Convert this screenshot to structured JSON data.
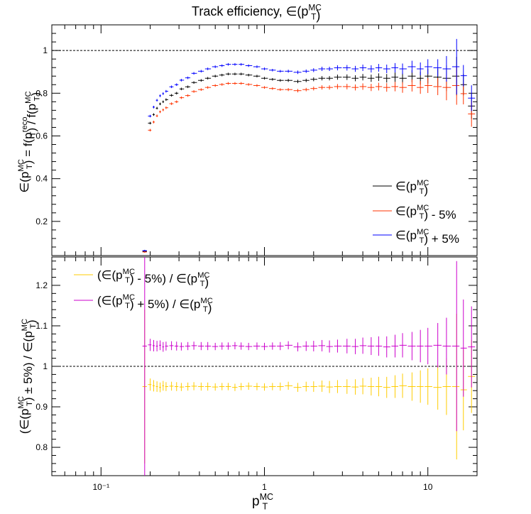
{
  "title": {
    "main": "Track efficiency, ∈(p",
    "sup": "MC",
    "sub": "T",
    "close": ")"
  },
  "chart_data": [
    {
      "type": "scatter",
      "title": "Track efficiency, ∈(p_T^MC)",
      "xlabel": "p_T^MC",
      "ylabel": "∈(p_T^MC) = f(p_T^reco) / f(p_T^MC)",
      "x_scale": "log",
      "xlim": [
        0.05,
        20
      ],
      "ylim": [
        0.04,
        1.12
      ],
      "reference_line": 1.0,
      "yticks": [
        0.2,
        0.4,
        0.6,
        0.8,
        1
      ],
      "ytick_labels": [
        "0.2",
        "0.4",
        "0.6",
        "0.8",
        "1"
      ],
      "legend_position": "bottom-right",
      "x": [
        0.185,
        0.2,
        0.21,
        0.22,
        0.23,
        0.24,
        0.25,
        0.27,
        0.29,
        0.31,
        0.34,
        0.37,
        0.41,
        0.45,
        0.5,
        0.55,
        0.6,
        0.66,
        0.72,
        0.8,
        0.9,
        1.0,
        1.12,
        1.25,
        1.4,
        1.6,
        1.8,
        2.0,
        2.25,
        2.5,
        2.8,
        3.2,
        3.6,
        4.0,
        4.5,
        5.0,
        5.6,
        6.3,
        7.0,
        8.0,
        9.0,
        10.0,
        11.5,
        13.0,
        15.0,
        16.5,
        18.5
      ],
      "series": [
        {
          "name": "∈(p_T^MC)",
          "color": "#000000",
          "values": [
            0.06,
            0.66,
            0.7,
            0.73,
            0.75,
            0.76,
            0.77,
            0.79,
            0.8,
            0.82,
            0.83,
            0.85,
            0.86,
            0.87,
            0.88,
            0.885,
            0.89,
            0.89,
            0.89,
            0.885,
            0.88,
            0.87,
            0.865,
            0.86,
            0.86,
            0.855,
            0.86,
            0.865,
            0.87,
            0.87,
            0.875,
            0.875,
            0.87,
            0.875,
            0.87,
            0.875,
            0.87,
            0.875,
            0.87,
            0.88,
            0.87,
            0.88,
            0.875,
            0.87,
            0.88,
            0.84,
            0.74
          ],
          "errors": [
            0.004,
            0.006,
            0.006,
            0.006,
            0.006,
            0.006,
            0.006,
            0.006,
            0.006,
            0.006,
            0.006,
            0.006,
            0.006,
            0.006,
            0.006,
            0.006,
            0.006,
            0.006,
            0.006,
            0.006,
            0.006,
            0.006,
            0.006,
            0.006,
            0.007,
            0.008,
            0.008,
            0.009,
            0.01,
            0.01,
            0.012,
            0.013,
            0.014,
            0.015,
            0.017,
            0.018,
            0.02,
            0.022,
            0.025,
            0.028,
            0.03,
            0.035,
            0.04,
            0.06,
            0.09,
            0.05,
            0.06
          ]
        },
        {
          "name": "∈(p_T^MC) - 5%",
          "color": "#ff3300",
          "values": [
            0.057,
            0.627,
            0.665,
            0.694,
            0.713,
            0.722,
            0.732,
            0.751,
            0.76,
            0.779,
            0.789,
            0.808,
            0.817,
            0.827,
            0.836,
            0.841,
            0.846,
            0.846,
            0.846,
            0.841,
            0.836,
            0.827,
            0.822,
            0.817,
            0.817,
            0.812,
            0.817,
            0.822,
            0.827,
            0.827,
            0.831,
            0.831,
            0.827,
            0.831,
            0.827,
            0.831,
            0.827,
            0.831,
            0.827,
            0.836,
            0.827,
            0.836,
            0.831,
            0.827,
            0.836,
            0.798,
            0.703
          ],
          "errors": [
            0.004,
            0.006,
            0.006,
            0.006,
            0.006,
            0.006,
            0.006,
            0.006,
            0.006,
            0.006,
            0.006,
            0.006,
            0.006,
            0.006,
            0.006,
            0.006,
            0.006,
            0.006,
            0.006,
            0.006,
            0.006,
            0.006,
            0.006,
            0.006,
            0.007,
            0.008,
            0.008,
            0.009,
            0.01,
            0.01,
            0.012,
            0.013,
            0.014,
            0.015,
            0.017,
            0.018,
            0.02,
            0.022,
            0.025,
            0.028,
            0.03,
            0.035,
            0.04,
            0.06,
            0.09,
            0.05,
            0.06
          ]
        },
        {
          "name": "∈(p_T^MC) + 5%",
          "color": "#0000ff",
          "values": [
            0.063,
            0.693,
            0.735,
            0.767,
            0.788,
            0.798,
            0.809,
            0.83,
            0.84,
            0.861,
            0.872,
            0.893,
            0.903,
            0.914,
            0.924,
            0.929,
            0.935,
            0.935,
            0.935,
            0.929,
            0.924,
            0.914,
            0.908,
            0.903,
            0.903,
            0.898,
            0.903,
            0.908,
            0.914,
            0.914,
            0.919,
            0.919,
            0.914,
            0.919,
            0.914,
            0.919,
            0.914,
            0.919,
            0.914,
            0.924,
            0.914,
            0.924,
            0.919,
            0.914,
            0.924,
            0.882,
            0.777
          ],
          "errors": [
            0.004,
            0.006,
            0.006,
            0.006,
            0.006,
            0.006,
            0.006,
            0.006,
            0.006,
            0.006,
            0.006,
            0.006,
            0.006,
            0.006,
            0.006,
            0.006,
            0.006,
            0.006,
            0.006,
            0.006,
            0.006,
            0.006,
            0.006,
            0.006,
            0.007,
            0.008,
            0.008,
            0.009,
            0.01,
            0.01,
            0.012,
            0.013,
            0.014,
            0.015,
            0.017,
            0.018,
            0.02,
            0.022,
            0.025,
            0.028,
            0.03,
            0.035,
            0.04,
            0.06,
            0.13,
            0.05,
            0.06
          ]
        }
      ]
    },
    {
      "type": "scatter",
      "xlabel": "p_T^MC",
      "ylabel": "(∈(p_T^MC) ± 5%) / ∈(p_T^MC)",
      "x_scale": "log",
      "xlim": [
        0.05,
        20
      ],
      "xticks": [
        0.1,
        1,
        10
      ],
      "xtick_labels": [
        "10⁻¹",
        "1",
        "10"
      ],
      "ylim": [
        0.73,
        1.27
      ],
      "reference_line": 1.0,
      "yticks": [
        0.8,
        0.9,
        1,
        1.1,
        1.2
      ],
      "ytick_labels": [
        "0.8",
        "0.9",
        "1",
        "1.1",
        "1.2"
      ],
      "legend_position": "top-left",
      "x": [
        0.185,
        0.2,
        0.21,
        0.22,
        0.23,
        0.24,
        0.25,
        0.27,
        0.29,
        0.31,
        0.34,
        0.37,
        0.41,
        0.45,
        0.5,
        0.55,
        0.6,
        0.66,
        0.72,
        0.8,
        0.9,
        1.0,
        1.12,
        1.25,
        1.4,
        1.6,
        1.8,
        2.0,
        2.25,
        2.5,
        2.8,
        3.2,
        3.6,
        4.0,
        4.5,
        5.0,
        5.6,
        6.3,
        7.0,
        8.0,
        9.0,
        10.0,
        11.5,
        13.0,
        15.0,
        16.5,
        18.5
      ],
      "series": [
        {
          "name": "(∈(p_T^MC) - 5%) / ∈(p_T^MC)",
          "color": "#ffcc00",
          "values": [
            0.95,
            0.955,
            0.952,
            0.95,
            0.948,
            0.952,
            0.95,
            0.951,
            0.95,
            0.949,
            0.95,
            0.951,
            0.95,
            0.95,
            0.949,
            0.95,
            0.95,
            0.948,
            0.95,
            0.951,
            0.95,
            0.949,
            0.95,
            0.95,
            0.952,
            0.948,
            0.95,
            0.95,
            0.951,
            0.949,
            0.95,
            0.95,
            0.949,
            0.951,
            0.95,
            0.95,
            0.948,
            0.95,
            0.952,
            0.95,
            0.95,
            0.95,
            0.948,
            0.95,
            0.95,
            0.942,
            0.975
          ],
          "errors": [
            0.19,
            0.015,
            0.014,
            0.013,
            0.012,
            0.012,
            0.011,
            0.011,
            0.011,
            0.01,
            0.01,
            0.01,
            0.01,
            0.01,
            0.009,
            0.009,
            0.009,
            0.009,
            0.009,
            0.009,
            0.009,
            0.009,
            0.009,
            0.01,
            0.01,
            0.011,
            0.012,
            0.013,
            0.014,
            0.015,
            0.016,
            0.018,
            0.019,
            0.02,
            0.022,
            0.024,
            0.026,
            0.028,
            0.03,
            0.035,
            0.04,
            0.045,
            0.055,
            0.07,
            0.18,
            0.1,
            0.09
          ]
        },
        {
          "name": "(∈(p_T^MC) + 5%) / ∈(p_T^MC)",
          "color": "#cc00cc",
          "values": [
            1.05,
            1.053,
            1.051,
            1.05,
            1.052,
            1.048,
            1.05,
            1.051,
            1.05,
            1.049,
            1.05,
            1.051,
            1.05,
            1.05,
            1.049,
            1.05,
            1.05,
            1.051,
            1.05,
            1.049,
            1.05,
            1.049,
            1.05,
            1.05,
            1.052,
            1.048,
            1.05,
            1.05,
            1.051,
            1.049,
            1.05,
            1.05,
            1.049,
            1.051,
            1.05,
            1.05,
            1.048,
            1.05,
            1.052,
            1.05,
            1.05,
            1.05,
            1.052,
            1.05,
            1.05,
            1.045,
            1.048
          ],
          "errors": [
            0.33,
            0.015,
            0.014,
            0.013,
            0.012,
            0.012,
            0.011,
            0.011,
            0.011,
            0.01,
            0.01,
            0.01,
            0.01,
            0.01,
            0.009,
            0.009,
            0.009,
            0.009,
            0.009,
            0.009,
            0.009,
            0.009,
            0.009,
            0.01,
            0.01,
            0.011,
            0.012,
            0.013,
            0.014,
            0.015,
            0.016,
            0.018,
            0.019,
            0.02,
            0.022,
            0.024,
            0.026,
            0.028,
            0.03,
            0.035,
            0.04,
            0.045,
            0.055,
            0.07,
            0.21,
            0.12,
            0.1
          ]
        }
      ]
    }
  ],
  "labels": {
    "top_y": {
      "a": "∈(p",
      "a_sup": "MC",
      "a_sub": "T",
      "b": ") = f(p",
      "b_sup": "reco",
      "b_sub": "T",
      "c": ") / f(p",
      "c_sup": "MC",
      "c_sub": "T",
      "d": ")"
    },
    "bottom_y": {
      "a": "(∈(p",
      "a_sup": "MC",
      "a_sub": "T",
      "b": ") ± 5%) / ∈(p",
      "b_sup": "MC",
      "b_sub": "T",
      "c": ")"
    },
    "x": {
      "a": "p",
      "a_sup": "MC",
      "a_sub": "T"
    }
  },
  "legend_top": [
    {
      "a": "∈(p",
      "sup": "MC",
      "sub": "T",
      "b": ")"
    },
    {
      "a": "∈(p",
      "sup": "MC",
      "sub": "T",
      "b": ") - 5%"
    },
    {
      "a": "∈(p",
      "sup": "MC",
      "sub": "T",
      "b": ") + 5%"
    }
  ],
  "legend_bottom": [
    {
      "a": "(∈(p",
      "sup": "MC",
      "sub": "T",
      "b": ") - 5%) / ∈(p",
      "sup2": "MC",
      "sub2": "T",
      "c": ")"
    },
    {
      "a": "(∈(p",
      "sup": "MC",
      "sub": "T",
      "b": ") + 5%) / ∈(p",
      "sup2": "MC",
      "sub2": "T",
      "c": ")"
    }
  ]
}
